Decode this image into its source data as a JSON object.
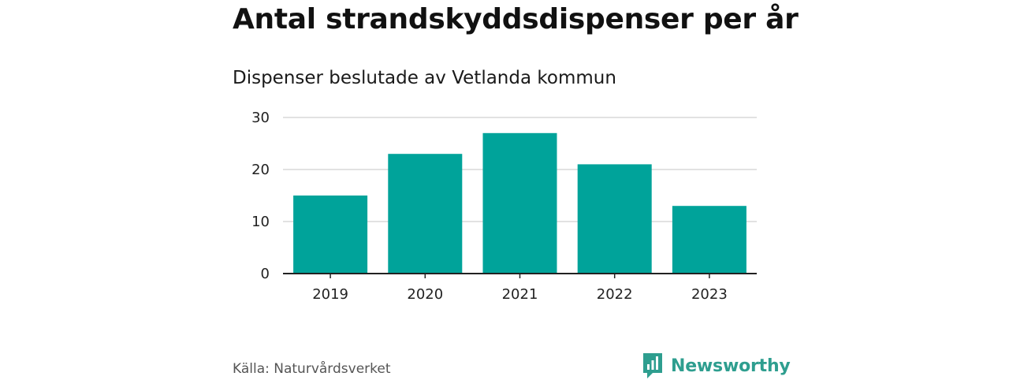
{
  "chart_data": {
    "type": "bar",
    "title": "Antal strandskyddsdispenser per år",
    "subtitle": "Dispenser beslutade av Vetlanda kommun",
    "categories": [
      "2019",
      "2020",
      "2021",
      "2022",
      "2023"
    ],
    "values": [
      15,
      23,
      27,
      21,
      13
    ],
    "xlabel": "",
    "ylabel": "",
    "ylim": [
      0,
      30
    ],
    "yticks": [
      "0",
      "10",
      "20",
      "30"
    ],
    "grid": true,
    "bar_color": "#00a39a"
  },
  "footer": {
    "source": "Källa: Naturvårdsverket",
    "brand": "Newsworthy",
    "brand_color": "#2e9e8f"
  }
}
